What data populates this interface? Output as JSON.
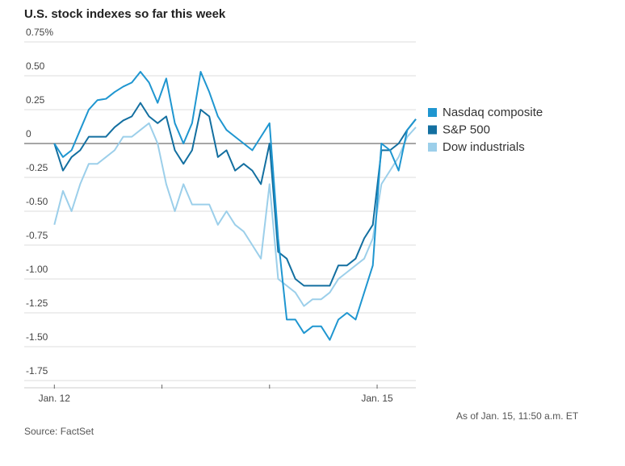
{
  "chart_data": {
    "type": "line",
    "title": "U.S. stock indexes so far this week",
    "note": "As of Jan. 15, 11:50 a.m. ET",
    "source": "Source: FactSet",
    "x": [
      0,
      0.08,
      0.16,
      0.24,
      0.32,
      0.4,
      0.48,
      0.56,
      0.64,
      0.72,
      0.8,
      0.88,
      0.96,
      1.04,
      1.12,
      1.2,
      1.28,
      1.36,
      1.44,
      1.52,
      1.6,
      1.68,
      1.76,
      1.84,
      1.92,
      2,
      2.08,
      2.16,
      2.24,
      2.32,
      2.4,
      2.48,
      2.56,
      2.64,
      2.72,
      2.8,
      2.88,
      2.96,
      3.04,
      3.12,
      3.2,
      3.28,
      3.36
    ],
    "series": [
      {
        "name": "Nasdaq composite",
        "color": "#1f96d0",
        "values": [
          0,
          -0.1,
          -0.05,
          0.1,
          0.25,
          0.32,
          0.33,
          0.38,
          0.42,
          0.45,
          0.53,
          0.45,
          0.3,
          0.48,
          0.15,
          0,
          0.15,
          0.53,
          0.38,
          0.2,
          0.1,
          0.05,
          0,
          -0.05,
          0.05,
          0.15,
          -0.7,
          -1.3,
          -1.3,
          -1.4,
          -1.35,
          -1.35,
          -1.45,
          -1.3,
          -1.25,
          -1.3,
          -1.1,
          -0.9,
          0,
          -0.05,
          -0.2,
          0.1,
          0.18
        ]
      },
      {
        "name": "S&P 500",
        "color": "#136fa0",
        "values": [
          0,
          -0.2,
          -0.1,
          -0.05,
          0.05,
          0.05,
          0.05,
          0.12,
          0.17,
          0.2,
          0.3,
          0.2,
          0.15,
          0.2,
          -0.05,
          -0.15,
          -0.05,
          0.25,
          0.2,
          -0.1,
          -0.05,
          -0.2,
          -0.15,
          -0.2,
          -0.3,
          0,
          -0.8,
          -0.85,
          -1,
          -1.05,
          -1.05,
          -1.05,
          -1.05,
          -0.9,
          -0.9,
          -0.85,
          -0.7,
          -0.6,
          -0.05,
          -0.05,
          0,
          0.1,
          0.18
        ]
      },
      {
        "name": "Dow industrials",
        "color": "#9ccfea",
        "values": [
          -0.6,
          -0.35,
          -0.5,
          -0.3,
          -0.15,
          -0.15,
          -0.1,
          -0.05,
          0.05,
          0.05,
          0.1,
          0.15,
          0,
          -0.3,
          -0.5,
          -0.3,
          -0.45,
          -0.45,
          -0.45,
          -0.6,
          -0.5,
          -0.6,
          -0.65,
          -0.75,
          -0.85,
          -0.3,
          -1,
          -1.05,
          -1.1,
          -1.2,
          -1.15,
          -1.15,
          -1.1,
          -1,
          -0.95,
          -0.9,
          -0.85,
          -0.7,
          -0.3,
          -0.2,
          -0.1,
          0.05,
          0.12
        ]
      }
    ],
    "xlim": [
      -0.28,
      3.36
    ],
    "xticks": [
      {
        "value": 0,
        "label": "Jan. 12"
      },
      1,
      2,
      {
        "value": 3,
        "label": "Jan. 15"
      }
    ],
    "ylim": [
      -1.75,
      0.75
    ],
    "yticks": [
      {
        "value": 0.75,
        "label": "0.75%"
      },
      {
        "value": 0.5,
        "label": "0.50"
      },
      0.25,
      0,
      -0.25,
      {
        "value": -0.5,
        "label": "-0.50"
      },
      -0.75,
      {
        "value": -1,
        "label": "-1.00"
      },
      -1.25,
      {
        "value": -1.5,
        "label": "-1.50"
      },
      -1.75
    ],
    "grid": true,
    "legend": "right"
  }
}
